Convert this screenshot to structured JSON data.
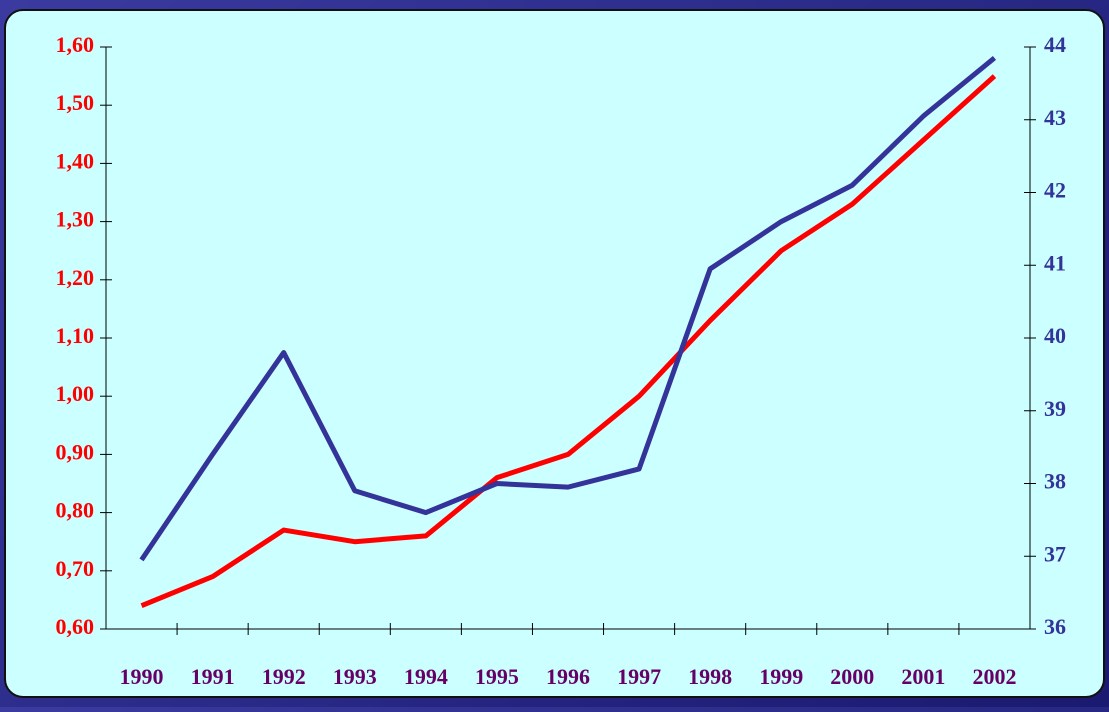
{
  "chart_data": {
    "type": "line",
    "categories": [
      "1990",
      "1991",
      "1992",
      "1993",
      "1994",
      "1995",
      "1996",
      "1997",
      "1998",
      "1999",
      "2000",
      "2001",
      "2002"
    ],
    "series": [
      {
        "color": "#ff0000",
        "values": [
          0.64,
          0.69,
          0.77,
          0.75,
          0.76,
          0.86,
          0.9,
          1.0,
          1.13,
          1.25,
          1.33,
          1.44,
          1.55
        ]
      },
      {
        "color": "#333399",
        "axis": "y2",
        "values": [
          36.95,
          38.4,
          39.8,
          37.9,
          37.6,
          38.0,
          37.95,
          38.2,
          40.95,
          41.6,
          42.1,
          43.05,
          43.85
        ]
      }
    ],
    "ylim": [
      0.6,
      1.6
    ],
    "yticks": [
      {
        "value": 0.6,
        "label": "0,60"
      },
      {
        "value": 0.7,
        "label": "0,70"
      },
      {
        "value": 0.8,
        "label": "0,80"
      },
      {
        "value": 0.9,
        "label": "0,90"
      },
      {
        "value": 1.0,
        "label": "1,00"
      },
      {
        "value": 1.1,
        "label": "1,10"
      },
      {
        "value": 1.2,
        "label": "1,20"
      },
      {
        "value": 1.3,
        "label": "1,30"
      },
      {
        "value": 1.4,
        "label": "1,40"
      },
      {
        "value": 1.5,
        "label": "1,50"
      },
      {
        "value": 1.6,
        "label": "1,60"
      }
    ],
    "y2lim": [
      36,
      44
    ],
    "y2ticks": [
      36,
      37,
      38,
      39,
      40,
      41,
      42,
      43,
      44
    ],
    "grid": false
  }
}
